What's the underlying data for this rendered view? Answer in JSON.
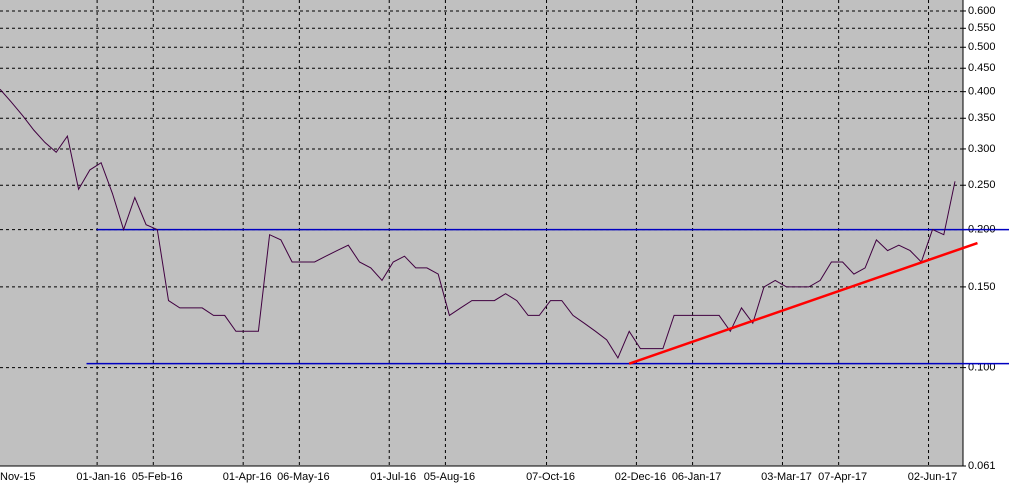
{
  "chart_data": {
    "type": "line",
    "log_scale": true,
    "grid": true,
    "categories": [
      null,
      "Nov-15",
      null,
      null,
      null,
      null,
      null,
      null,
      null,
      "01-Jan-16",
      null,
      null,
      null,
      null,
      "05-Feb-16",
      null,
      null,
      null,
      null,
      null,
      null,
      null,
      "01-Apr-16",
      null,
      null,
      null,
      null,
      "06-May-16",
      null,
      null,
      null,
      null,
      null,
      null,
      null,
      "01-Jul-16",
      null,
      null,
      null,
      null,
      "05-Aug-16",
      null,
      null,
      null,
      null,
      null,
      null,
      null,
      null,
      "07-Oct-16",
      null,
      null,
      null,
      null,
      null,
      null,
      null,
      "02-Dec-16",
      null,
      null,
      null,
      null,
      "06-Jan-17",
      null,
      null,
      null,
      null,
      null,
      null,
      null,
      "03-Mar-17",
      null,
      null,
      null,
      null,
      "07-Apr-17",
      null,
      null,
      null,
      null,
      null,
      null,
      null,
      "02-Jun-17",
      null,
      null
    ],
    "values": [
      0.405,
      0.38,
      0.355,
      0.33,
      0.31,
      0.295,
      0.32,
      0.245,
      0.27,
      0.28,
      0.24,
      0.2,
      0.235,
      0.205,
      0.2,
      0.14,
      0.135,
      0.135,
      0.135,
      0.13,
      0.13,
      0.12,
      0.12,
      0.12,
      0.195,
      0.19,
      0.17,
      0.17,
      0.17,
      0.175,
      0.18,
      0.185,
      0.17,
      0.165,
      0.155,
      0.17,
      0.175,
      0.165,
      0.165,
      0.16,
      0.13,
      0.135,
      0.14,
      0.14,
      0.14,
      0.145,
      0.14,
      0.13,
      0.13,
      0.14,
      0.14,
      0.13,
      0.125,
      0.12,
      0.115,
      0.105,
      0.12,
      0.11,
      0.11,
      0.11,
      0.13,
      0.13,
      0.13,
      0.13,
      0.13,
      0.12,
      0.135,
      0.125,
      0.15,
      0.155,
      0.15,
      0.15,
      0.15,
      0.155,
      0.17,
      0.17,
      0.16,
      0.165,
      0.19,
      0.18,
      0.185,
      0.18,
      0.17,
      0.2,
      0.195,
      0.255
    ],
    "color": "#400040",
    "ylim": [
      0.061,
      0.634
    ],
    "yticks": [
      {
        "value": 0.061,
        "label": "0.061"
      },
      {
        "value": 0.1,
        "label": "0.100"
      },
      {
        "value": 0.15,
        "label": "0.150"
      },
      {
        "value": 0.2,
        "label": "0.200"
      },
      {
        "value": 0.25,
        "label": "0.250"
      },
      {
        "value": 0.3,
        "label": "0.300"
      },
      {
        "value": 0.35,
        "label": "0.350"
      },
      {
        "value": 0.4,
        "label": "0.400"
      },
      {
        "value": 0.45,
        "label": "0.450"
      },
      {
        "value": 0.5,
        "label": "0.500"
      },
      {
        "value": 0.55,
        "label": "0.550"
      },
      {
        "value": 0.6,
        "label": "0.600"
      }
    ],
    "horizontal_lines": [
      {
        "value": 0.2,
        "start": 8.6,
        "color": "#0000c0"
      },
      {
        "value": 0.102,
        "start": 7.7,
        "color": "#0000c0"
      }
    ],
    "trendline": {
      "x": [
        56,
        87
      ],
      "values": [
        0.102,
        0.187
      ],
      "color": "#ff0000"
    }
  }
}
